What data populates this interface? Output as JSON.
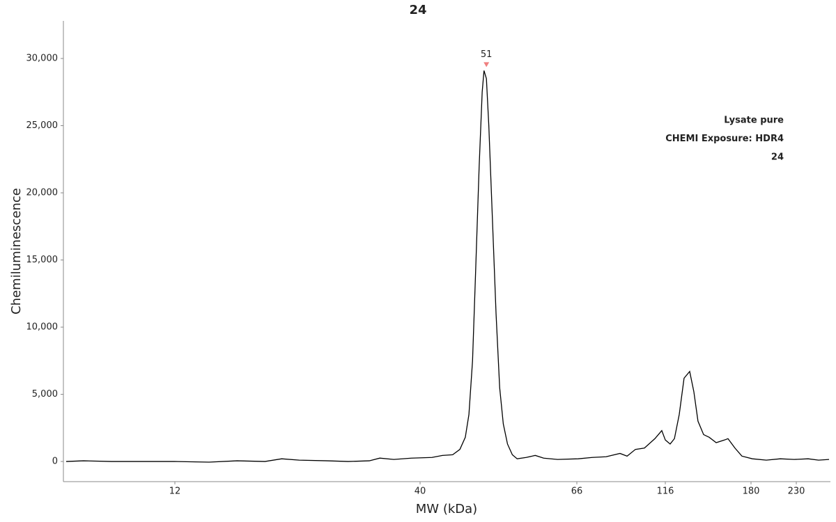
{
  "chart_data": {
    "type": "line",
    "title": "24",
    "x_label": "MW (kDa)",
    "y_label": "Chemiluminescence",
    "legend_texts": [
      {
        "text": "Lysate pure",
        "color": "#000000"
      },
      {
        "text": "CHEMI Exposure: HDR4",
        "color": "#000000"
      },
      {
        "text": "24",
        "color": "#888888"
      }
    ],
    "peak_annotations": [
      {
        "x": 51,
        "color": "#f08080"
      }
    ],
    "color": "#000000",
    "xlim": [
      2,
      270
    ],
    "xticks": [
      12,
      40,
      66,
      116,
      180,
      230
    ],
    "ylim": [
      -1500,
      32800
    ],
    "yticks": [
      0,
      {
        "value": 5000,
        "label": "5,000"
      },
      {
        "value": 10000,
        "label": "10,000"
      },
      {
        "value": 15000,
        "label": "15,000"
      },
      {
        "value": 20000,
        "label": "20,000"
      },
      {
        "value": 25000,
        "label": "25,000"
      },
      {
        "value": 30000,
        "label": "30,000"
      }
    ],
    "grid": false,
    "x": [
      2.25,
      3.81,
      6.31,
      11.94,
      15.9,
      19.1,
      22.3,
      24.2,
      26.2,
      29.4,
      31.8,
      34.2,
      35.4,
      37.0,
      39.0,
      41.97,
      43.7,
      45.4,
      46.6,
      47.5,
      48.1,
      48.7,
      49.2,
      49.8,
      50.3,
      50.6,
      51.0,
      51.4,
      52.0,
      52.6,
      53.2,
      53.8,
      54.5,
      55.3,
      56.1,
      57.6,
      59.1,
      60.5,
      62.8,
      66.8,
      74.7,
      82.5,
      90.4,
      94.4,
      99.1,
      104.2,
      110.1,
      114.0,
      116,
      119.6,
      122.8,
      126.4,
      130.0,
      134.2,
      137.3,
      140.4,
      144.6,
      148.8,
      154.0,
      160.2,
      162.8,
      168.0,
      173.2,
      181.5,
      196.9,
      212.3,
      227.7,
      243.9,
      256.1,
      268.4
    ],
    "values": [
      0,
      50,
      0,
      0,
      -50,
      50,
      0,
      200,
      100,
      50,
      0,
      50,
      250,
      150,
      250,
      300,
      450,
      500,
      900,
      1800,
      3500,
      7500,
      14000,
      22000,
      27500,
      29100,
      28500,
      25000,
      18000,
      11000,
      5500,
      2800,
      1300,
      500,
      200,
      300,
      450,
      250,
      150,
      200,
      300,
      350,
      600,
      400,
      900,
      1000,
      1700,
      2300,
      1600,
      1300,
      1700,
      3500,
      6200,
      6700,
      5200,
      3000,
      2000,
      1800,
      1400,
      1600,
      1700,
      1000,
      400,
      200,
      100,
      200,
      150,
      200,
      100,
      150
    ]
  }
}
